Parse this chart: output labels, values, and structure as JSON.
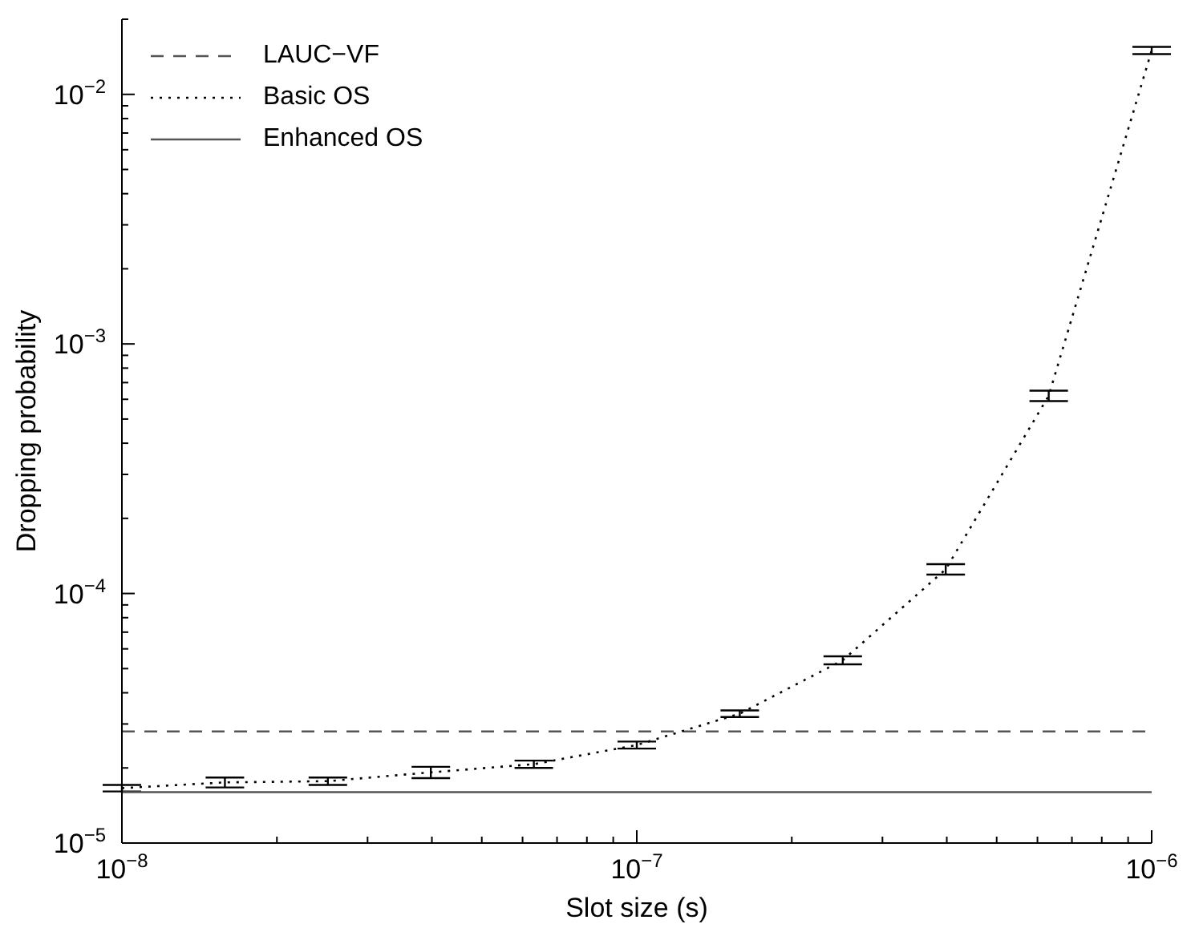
{
  "chart_data": {
    "type": "line",
    "xlabel": "Slot size (s)",
    "ylabel": "Dropping probability",
    "log": "xy",
    "legend": "top left",
    "xlim": [
      1e-08,
      1e-06
    ],
    "ylim": [
      1e-05,
      0.02
    ],
    "xticks": [
      {
        "value": 1e-08,
        "label": "10$^{−8}$"
      },
      {
        "value": 2e-08,
        "label": null
      },
      {
        "value": 3e-08,
        "label": null
      },
      {
        "value": 4e-08,
        "label": null
      },
      {
        "value": 5e-08,
        "label": null
      },
      {
        "value": 6e-08,
        "label": null
      },
      {
        "value": 7e-08,
        "label": null
      },
      {
        "value": 8e-08,
        "label": null
      },
      {
        "value": 9e-08,
        "label": null
      },
      {
        "value": 1e-07,
        "label": "10$^{−7}$"
      },
      {
        "value": 2e-07,
        "label": null
      },
      {
        "value": 3e-07,
        "label": null
      },
      {
        "value": 4e-07,
        "label": null
      },
      {
        "value": 5e-07,
        "label": null
      },
      {
        "value": 6e-07,
        "label": null
      },
      {
        "value": 7e-07,
        "label": null
      },
      {
        "value": 8e-07,
        "label": null
      },
      {
        "value": 9e-07,
        "label": null
      },
      {
        "value": 1e-06,
        "label": "10$^{−6}$"
      }
    ],
    "yticks": [
      {
        "value": 1e-05,
        "label": "10$^{−5}$"
      },
      {
        "value": 2e-05,
        "label": null
      },
      {
        "value": 3e-05,
        "label": null
      },
      {
        "value": 4e-05,
        "label": null
      },
      {
        "value": 5e-05,
        "label": null
      },
      {
        "value": 6e-05,
        "label": null
      },
      {
        "value": 7e-05,
        "label": null
      },
      {
        "value": 8e-05,
        "label": null
      },
      {
        "value": 9e-05,
        "label": null
      },
      {
        "value": 0.0001,
        "label": "10$^{−4}$"
      },
      {
        "value": 0.0002,
        "label": null
      },
      {
        "value": 0.0003,
        "label": null
      },
      {
        "value": 0.0004,
        "label": null
      },
      {
        "value": 0.0005,
        "label": null
      },
      {
        "value": 0.0006,
        "label": null
      },
      {
        "value": 0.0007,
        "label": null
      },
      {
        "value": 0.0008,
        "label": null
      },
      {
        "value": 0.0009,
        "label": null
      },
      {
        "value": 0.001,
        "label": "10$^{−3}$"
      },
      {
        "value": 0.002,
        "label": null
      },
      {
        "value": 0.003,
        "label": null
      },
      {
        "value": 0.004,
        "label": null
      },
      {
        "value": 0.005,
        "label": null
      },
      {
        "value": 0.006,
        "label": null
      },
      {
        "value": 0.007,
        "label": null
      },
      {
        "value": 0.008,
        "label": null
      },
      {
        "value": 0.009,
        "label": null
      },
      {
        "value": 0.01,
        "label": "10$^{−2}$"
      },
      {
        "value": 0.02,
        "label": null
      }
    ],
    "series": [
      {
        "name": "LAUC−VF",
        "color": "#555555",
        "line_style": "dashed",
        "x": [
          1e-08,
          1e-06
        ],
        "values": [
          2.8e-05,
          2.8e-05
        ]
      },
      {
        "name": "Basic OS",
        "color": "#000000",
        "line_style": "dotted",
        "x": [
          1e-08,
          1.585e-08,
          2.512e-08,
          3.981e-08,
          6.31e-08,
          1e-07,
          1.585e-07,
          2.512e-07,
          3.981e-07,
          6.31e-07,
          1e-06
        ],
        "values": [
          1.66e-05,
          1.75e-05,
          1.77e-05,
          1.92e-05,
          2.07e-05,
          2.47e-05,
          3.3e-05,
          5.4e-05,
          0.000125,
          0.00062,
          0.015
        ],
        "errors": [
          5e-07,
          8e-07,
          6e-07,
          1e-06,
          7e-07,
          8e-07,
          1e-06,
          2e-06,
          6e-06,
          3e-05,
          0.0005
        ]
      },
      {
        "name": "Enhanced OS",
        "color": "#555555",
        "line_style": "solid",
        "x": [
          1e-08,
          1e-06
        ],
        "values": [
          1.6e-05,
          1.6e-05
        ]
      }
    ]
  }
}
